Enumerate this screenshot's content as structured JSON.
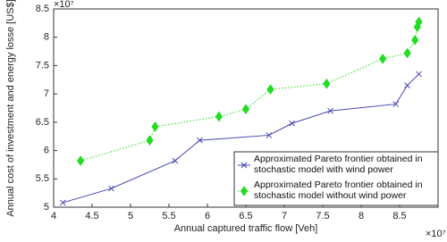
{
  "chart_data": {
    "type": "line",
    "x_label": "Annual captured traffic flow [Veh]",
    "y_label": "Annual cost of investment and energy losse [US$]",
    "x_multiplier": "×10⁷",
    "y_multiplier": "×10⁷",
    "xlim": [
      4,
      9
    ],
    "xticks": [
      4,
      4.5,
      5,
      5.5,
      6,
      6.5,
      7,
      7.5,
      8,
      8.5
    ],
    "ylim": [
      5,
      8.5
    ],
    "yticks": [
      5,
      5.5,
      6,
      6.5,
      7,
      7.5,
      8,
      8.5
    ],
    "grid": false,
    "legend": "lower right",
    "series": [
      {
        "name": "Approximated Pareto frontier obtained in stochastic  model with  wind power",
        "color": "#4646b4",
        "marker": "x",
        "line": "solid",
        "x": [
          4.12,
          4.75,
          5.58,
          5.9,
          6.8,
          7.1,
          7.6,
          8.45,
          8.6,
          8.75
        ],
        "values": [
          5.08,
          5.33,
          5.82,
          6.18,
          6.27,
          6.48,
          6.7,
          6.82,
          7.15,
          7.35
        ]
      },
      {
        "name": "Approximated Pareto frontier obtained in stochastic  model without  wind power",
        "color": "#22dd22",
        "marker": "diamond",
        "line": "dotted",
        "x": [
          4.35,
          5.25,
          5.32,
          6.15,
          6.5,
          6.82,
          7.55,
          8.28,
          8.6,
          8.7,
          8.73,
          8.75
        ],
        "values": [
          5.82,
          6.18,
          6.42,
          6.6,
          6.73,
          7.08,
          7.18,
          7.62,
          7.72,
          7.95,
          8.18,
          8.27
        ]
      }
    ]
  }
}
